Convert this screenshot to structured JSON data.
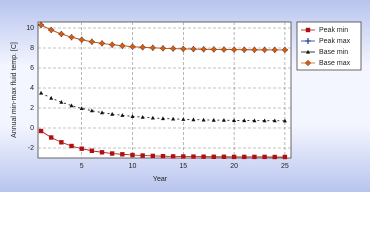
{
  "chart_data": {
    "type": "line",
    "x_label": "Year",
    "y_label": "Annual min-max fluid temp. [C]",
    "x": [
      1,
      2,
      3,
      4,
      5,
      6,
      7,
      8,
      9,
      10,
      11,
      12,
      13,
      14,
      15,
      16,
      17,
      18,
      19,
      20,
      21,
      22,
      23,
      24,
      25
    ],
    "series": [
      {
        "name": "Peak min",
        "color": "#b01010",
        "marker": "square",
        "values": [
          -0.3,
          -0.95,
          -1.43,
          -1.8,
          -2.07,
          -2.28,
          -2.43,
          -2.55,
          -2.63,
          -2.7,
          -2.75,
          -2.79,
          -2.82,
          -2.84,
          -2.85,
          -2.86,
          -2.87,
          -2.88,
          -2.88,
          -2.89,
          -2.89,
          -2.89,
          -2.89,
          -2.9,
          -2.9
        ]
      },
      {
        "name": "Peak max",
        "color": "#1a3aa0",
        "marker": "plus",
        "values": [
          10.3,
          9.8,
          9.4,
          9.08,
          8.83,
          8.62,
          8.46,
          8.33,
          8.22,
          8.14,
          8.07,
          8.02,
          7.97,
          7.94,
          7.91,
          7.89,
          7.87,
          7.86,
          7.85,
          7.84,
          7.83,
          7.82,
          7.82,
          7.81,
          7.81
        ]
      },
      {
        "name": "Base min",
        "color": "#111111",
        "marker": "triangle",
        "values": [
          3.5,
          2.99,
          2.58,
          2.24,
          1.96,
          1.73,
          1.54,
          1.39,
          1.27,
          1.16,
          1.08,
          1.01,
          0.95,
          0.91,
          0.87,
          0.84,
          0.81,
          0.79,
          0.78,
          0.76,
          0.75,
          0.74,
          0.73,
          0.73,
          0.72
        ]
      },
      {
        "name": "Base max",
        "color": "#d06010",
        "marker": "diamond",
        "values": [
          10.3,
          9.8,
          9.4,
          9.08,
          8.83,
          8.62,
          8.46,
          8.33,
          8.22,
          8.14,
          8.07,
          8.02,
          7.97,
          7.94,
          7.91,
          7.89,
          7.87,
          7.86,
          7.85,
          7.84,
          7.83,
          7.82,
          7.82,
          7.81,
          7.81
        ]
      }
    ],
    "xlim": [
      0.7,
      25.6
    ],
    "xticks": [
      5,
      10,
      15,
      20,
      25
    ],
    "ylim": [
      -3,
      10.6
    ],
    "yticks": [
      -2,
      0,
      2,
      4,
      6,
      8,
      10
    ],
    "grid": true,
    "legend": "right"
  }
}
